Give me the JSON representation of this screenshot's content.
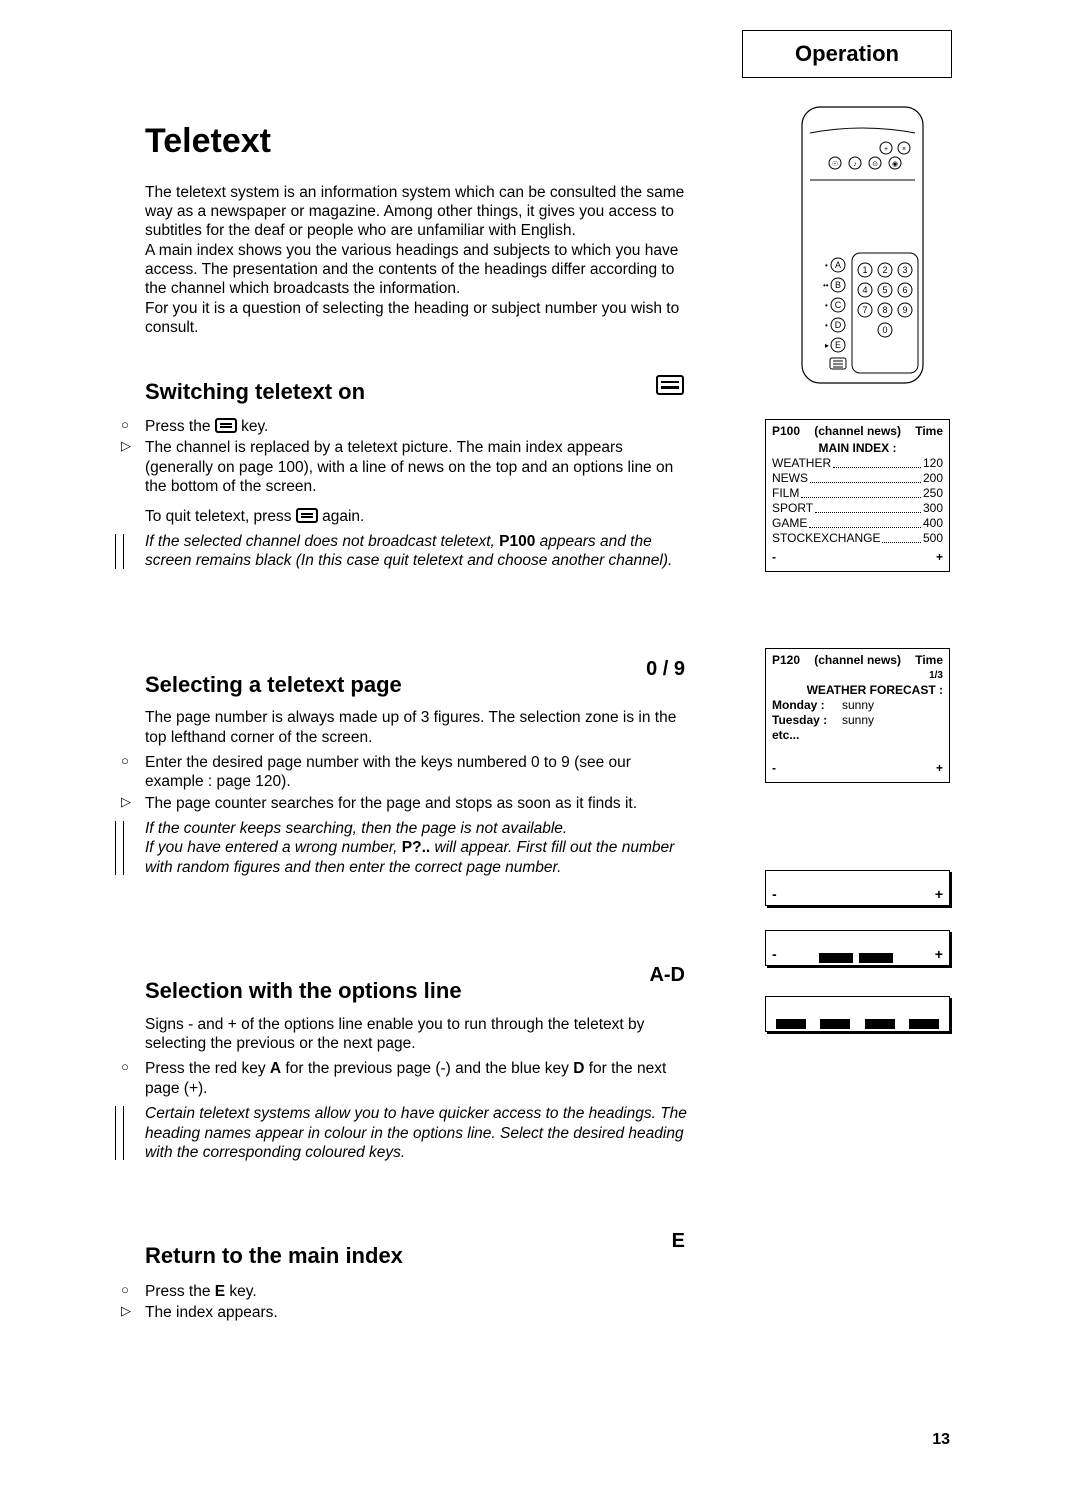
{
  "header": "Operation",
  "page_number": "13",
  "title": "Teletext",
  "intro": "The teletext system is an information system which can be consulted the same way as a newspaper or magazine. Among other things, it gives you access to subtitles for the deaf or people who are unfamiliar with English.\nA main index shows you the various headings and subjects to which you have access. The presentation and the contents of the headings differ according to the channel which broadcasts the information.\nFor you it is a question of selecting the heading or subject number you wish to consult.",
  "sections": {
    "switch": {
      "title": "Switching teletext on",
      "b1_pre": "Press the ",
      "b1_post": " key.",
      "b2": "The channel is replaced by a teletext picture. The main index appears (generally on page 100), with a line of news on the top and an options line on the bottom of the screen.",
      "b3_pre": "To quit teletext, press ",
      "b3_post": " again.",
      "note_pre": "If the selected channel does not broadcast teletext, ",
      "note_bold": "P100",
      "note_post": " appears and the screen remains black (In this case quit teletext and choose another channel)."
    },
    "select": {
      "title": "Selecting a teletext page",
      "tag": "0 / 9",
      "p1": "The page number is always made up of 3 figures. The selection zone is in the top lefthand corner of the screen.",
      "b1": "Enter the desired page number with the keys numbered 0 to 9 (see our example : page 120).",
      "b2": "The page counter searches for the page and stops as soon as it finds it.",
      "note1": "If the counter keeps searching, then the page is not available.",
      "note2_pre": "If you have entered a wrong number, ",
      "note2_bold": "P?..",
      "note2_post": " will appear. First fill out the number with random figures and then enter the correct page number."
    },
    "options": {
      "title": "Selection with the options line",
      "tag": "A-D",
      "p1": "Signs - and + of the options line enable you to run through the teletext by selecting the previous or the next page.",
      "b1_pre": "Press the red key ",
      "b1_a": "A",
      "b1_mid": " for the previous page (-) and the blue key ",
      "b1_d": "D",
      "b1_post": " for the next page (+).",
      "note": "Certain teletext systems allow you to have quicker access to the headings. The heading names appear in colour in the options line. Select the desired heading with the corresponding coloured keys."
    },
    "return": {
      "title": "Return to the main index",
      "tag": "E",
      "b1_pre": "Press the ",
      "b1_e": "E",
      "b1_post": " key.",
      "b2": "The index appears."
    }
  },
  "ttbox1": {
    "h1": "P100",
    "h2": "(channel news)",
    "h3": "Time",
    "title": "MAIN INDEX :",
    "rows": [
      {
        "l": "WEATHER",
        "r": "120"
      },
      {
        "l": "NEWS",
        "r": "200"
      },
      {
        "l": "FILM",
        "r": "250"
      },
      {
        "l": "SPORT",
        "r": "300"
      },
      {
        "l": "GAME",
        "r": "400"
      },
      {
        "l": "STOCKEXCHANGE",
        "r": "500"
      }
    ],
    "fminus": "-",
    "fplus": "+"
  },
  "ttbox2": {
    "h1": "P120",
    "h2": "(channel news)",
    "h3": "Time",
    "subr": "1/3",
    "title": "WEATHER FORECAST :",
    "rows": [
      {
        "l": "Monday :",
        "r": "sunny"
      },
      {
        "l": "Tuesday :",
        "r": "sunny"
      },
      {
        "l": "etc...",
        "r": ""
      }
    ],
    "fminus": "-",
    "fplus": "+"
  },
  "optbox": {
    "minus": "-",
    "plus": "+"
  },
  "remote_labels": [
    "A",
    "B",
    "C",
    "D",
    "E"
  ],
  "remote_digits": [
    "1",
    "2",
    "3",
    "4",
    "5",
    "6",
    "7",
    "8",
    "9",
    "0"
  ],
  "colors": {
    "ink": "#000000",
    "paper": "#ffffff"
  }
}
